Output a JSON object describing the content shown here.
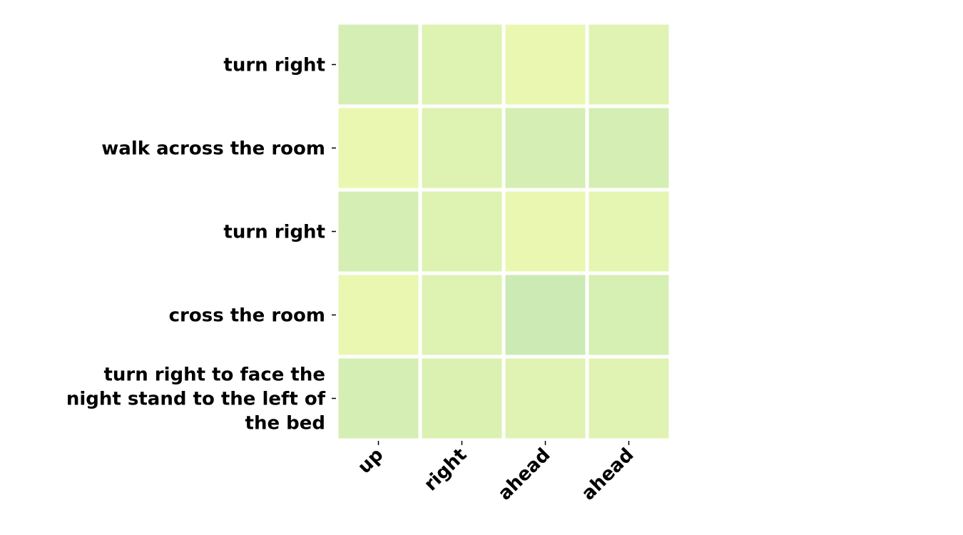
{
  "chart_data": {
    "type": "heatmap",
    "title": "",
    "xlabel": "",
    "ylabel": "",
    "x_labels": [
      "up",
      "right",
      "ahead",
      "ahead"
    ],
    "y_labels": [
      "turn right",
      "walk across the room",
      "turn right",
      "cross the room",
      "turn right to face the night stand to the left of the bed"
    ],
    "values": [
      [
        0.3,
        0.22,
        0.12,
        0.2
      ],
      [
        0.12,
        0.22,
        0.3,
        0.3
      ],
      [
        0.3,
        0.22,
        0.12,
        0.16
      ],
      [
        0.12,
        0.22,
        0.36,
        0.28
      ],
      [
        0.3,
        0.24,
        0.2,
        0.2
      ]
    ],
    "colorbar": false,
    "colors": {
      "low": "#edf8b1",
      "high": "#c7e9b4"
    }
  }
}
